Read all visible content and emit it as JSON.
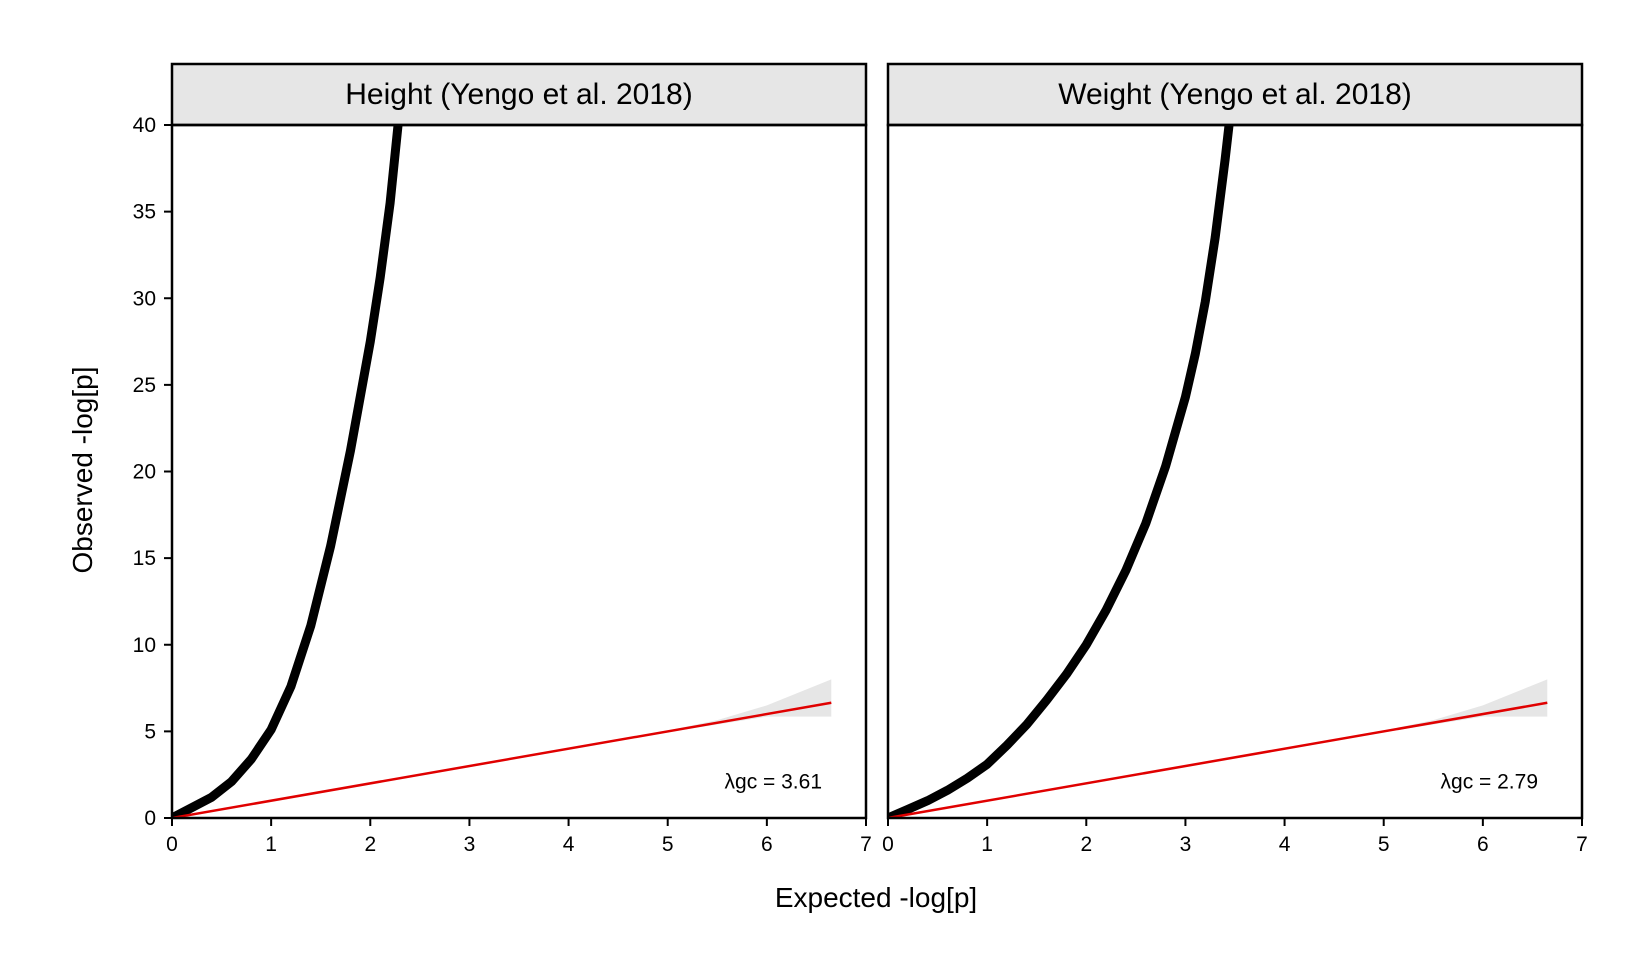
{
  "figure": {
    "xlabel": "Expected -log[p]",
    "ylabel": "Observed -log[p]"
  },
  "chart_data": [
    {
      "type": "scatter",
      "title": "Height (Yengo et al. 2018)",
      "xlabel": "Expected -log[p]",
      "ylabel": "Observed -log[p]",
      "xlim": [
        0,
        7
      ],
      "ylim": [
        0,
        40
      ],
      "xticks": [
        "0",
        "1",
        "2",
        "3",
        "4",
        "5",
        "6",
        "7"
      ],
      "yticks": [
        "0",
        "5",
        "10",
        "15",
        "20",
        "25",
        "30",
        "35",
        "40"
      ],
      "annotation": "λgc = 3.61",
      "points": {
        "x": [
          0,
          0.2,
          0.4,
          0.6,
          0.8,
          1.0,
          1.2,
          1.4,
          1.6,
          1.8,
          2.0,
          2.1,
          2.2,
          2.28
        ],
        "y": [
          0,
          0.6,
          1.2,
          2.1,
          3.4,
          5.1,
          7.6,
          11.1,
          15.7,
          21.2,
          27.5,
          31.2,
          35.5,
          40
        ]
      },
      "reference_line": {
        "x": [
          0,
          6.65
        ],
        "y": [
          0,
          6.65
        ]
      },
      "confidence_band": {
        "x": [
          5.0,
          5.5,
          6.0,
          6.65
        ],
        "lower": [
          4.95,
          5.4,
          5.85,
          5.85
        ],
        "upper": [
          5.05,
          5.65,
          6.5,
          8.0
        ]
      },
      "colors": {
        "points": "#000000",
        "line": "#e00000",
        "band": "#e6e6e6",
        "strip": "#e6e6e6"
      }
    },
    {
      "type": "scatter",
      "title": "Weight (Yengo et al. 2018)",
      "xlabel": "Expected -log[p]",
      "ylabel": "Observed -log[p]",
      "xlim": [
        0,
        7
      ],
      "ylim": [
        0,
        40
      ],
      "xticks": [
        "0",
        "1",
        "2",
        "3",
        "4",
        "5",
        "6",
        "7"
      ],
      "yticks": [
        "0",
        "5",
        "10",
        "15",
        "20",
        "25",
        "30",
        "35",
        "40"
      ],
      "annotation": "λgc = 2.79",
      "points": {
        "x": [
          0,
          0.2,
          0.4,
          0.6,
          0.8,
          1.0,
          1.2,
          1.4,
          1.6,
          1.8,
          2.0,
          2.2,
          2.4,
          2.6,
          2.8,
          3.0,
          3.1,
          3.2,
          3.3,
          3.4,
          3.44
        ],
        "y": [
          0,
          0.5,
          1.0,
          1.6,
          2.3,
          3.1,
          4.2,
          5.4,
          6.8,
          8.3,
          10.0,
          12.0,
          14.3,
          17.0,
          20.3,
          24.3,
          26.8,
          29.8,
          33.5,
          38.0,
          40
        ]
      },
      "reference_line": {
        "x": [
          0,
          6.65
        ],
        "y": [
          0,
          6.65
        ]
      },
      "confidence_band": {
        "x": [
          5.0,
          5.5,
          6.0,
          6.65
        ],
        "lower": [
          4.95,
          5.4,
          5.85,
          5.85
        ],
        "upper": [
          5.05,
          5.65,
          6.5,
          8.0
        ]
      },
      "colors": {
        "points": "#000000",
        "line": "#e00000",
        "band": "#e6e6e6",
        "strip": "#e6e6e6"
      }
    }
  ]
}
